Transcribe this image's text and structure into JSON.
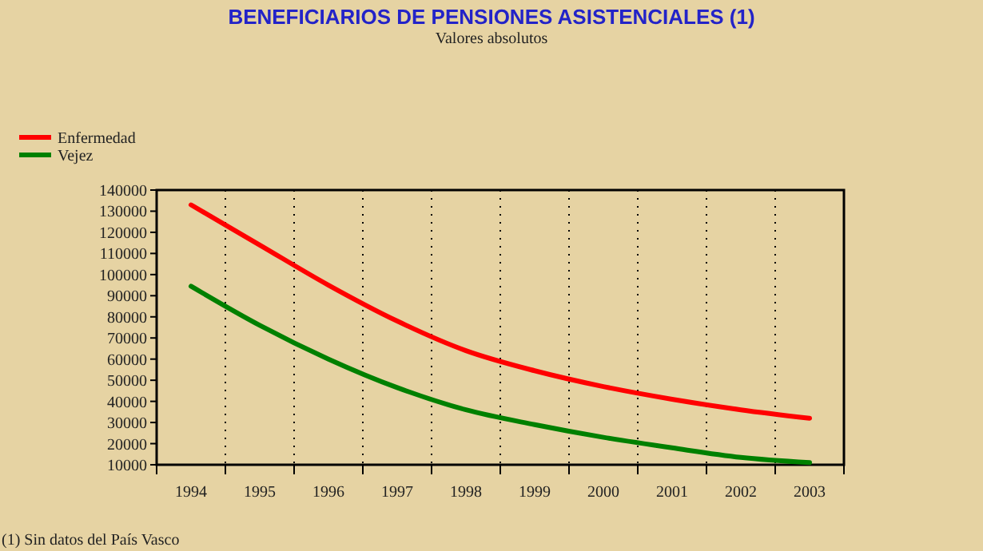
{
  "chart_data": {
    "type": "line",
    "title": "BENEFICIARIOS DE PENSIONES ASISTENCIALES (1)",
    "subtitle": "Valores absolutos",
    "categories": [
      "1994",
      "1995",
      "1996",
      "1997",
      "1998",
      "1999",
      "2000",
      "2001",
      "2002",
      "2003"
    ],
    "series": [
      {
        "name": "Enfermedad",
        "color": "#ff0000",
        "values": [
          133000,
          114000,
          95000,
          78000,
          64000,
          54500,
          47000,
          41000,
          36000,
          32000
        ]
      },
      {
        "name": "Vejez",
        "color": "#008000",
        "values": [
          94500,
          76000,
          60000,
          46500,
          36000,
          29000,
          23000,
          18000,
          13500,
          11000
        ]
      }
    ],
    "ylim": [
      10000,
      140000
    ],
    "yticks": [
      10000,
      20000,
      30000,
      40000,
      50000,
      60000,
      70000,
      80000,
      90000,
      100000,
      110000,
      120000,
      130000,
      140000
    ],
    "grid": "x",
    "legend": "top left",
    "marker": "none",
    "line_style": "solid",
    "annotations": [
      "(1) Sin datos del País Vasco"
    ]
  }
}
